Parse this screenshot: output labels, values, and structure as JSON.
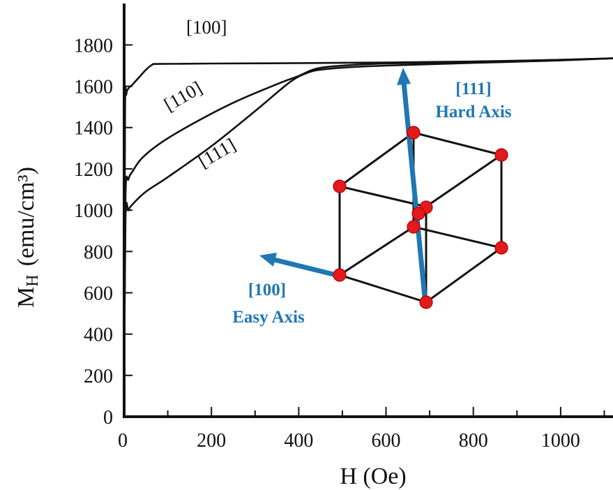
{
  "chart_data": {
    "type": "line",
    "title": "",
    "xlabel": "H (Oe)",
    "ylabel_main": "M",
    "ylabel_sub": "H",
    "ylabel_unit": "(emu/cm³)",
    "xlim": [
      0,
      1120
    ],
    "ylim": [
      0,
      1950
    ],
    "xticks": [
      0,
      200,
      400,
      600,
      800,
      1000
    ],
    "xminor": [
      100,
      300,
      500,
      700,
      900,
      1100
    ],
    "yticks": [
      0,
      200,
      400,
      600,
      800,
      1000,
      1200,
      1400,
      1600,
      1800
    ],
    "series": [
      {
        "name": "[100]",
        "x": [
          0,
          2,
          5,
          10,
          20,
          35,
          50,
          65,
          80,
          200,
          400,
          600,
          800,
          1000,
          1120
        ],
        "y": [
          0,
          1450,
          1560,
          1590,
          1610,
          1645,
          1680,
          1705,
          1708,
          1710,
          1712,
          1715,
          1720,
          1728,
          1735
        ]
      },
      {
        "name": "[110]",
        "x": [
          0,
          3,
          10,
          20,
          40,
          80,
          150,
          250,
          350,
          400,
          440,
          500,
          600,
          800,
          1000,
          1120
        ],
        "y": [
          0,
          1050,
          1150,
          1190,
          1250,
          1320,
          1410,
          1520,
          1610,
          1650,
          1685,
          1700,
          1710,
          1718,
          1728,
          1735
        ]
      },
      {
        "name": "[111]",
        "x": [
          0,
          3,
          10,
          20,
          50,
          100,
          200,
          300,
          380,
          420,
          450,
          500,
          600,
          800,
          1000,
          1120
        ],
        "y": [
          0,
          950,
          1000,
          1030,
          1090,
          1160,
          1310,
          1480,
          1620,
          1665,
          1680,
          1690,
          1700,
          1713,
          1725,
          1735
        ]
      }
    ],
    "annotations": {
      "easy_axis_index": "[100]",
      "easy_axis_label": "Easy Axis",
      "hard_axis_index": "[111]",
      "hard_axis_label": "Hard Axis",
      "arrow_color": "#1f77b4",
      "atom_color": "#e31a1c"
    }
  }
}
